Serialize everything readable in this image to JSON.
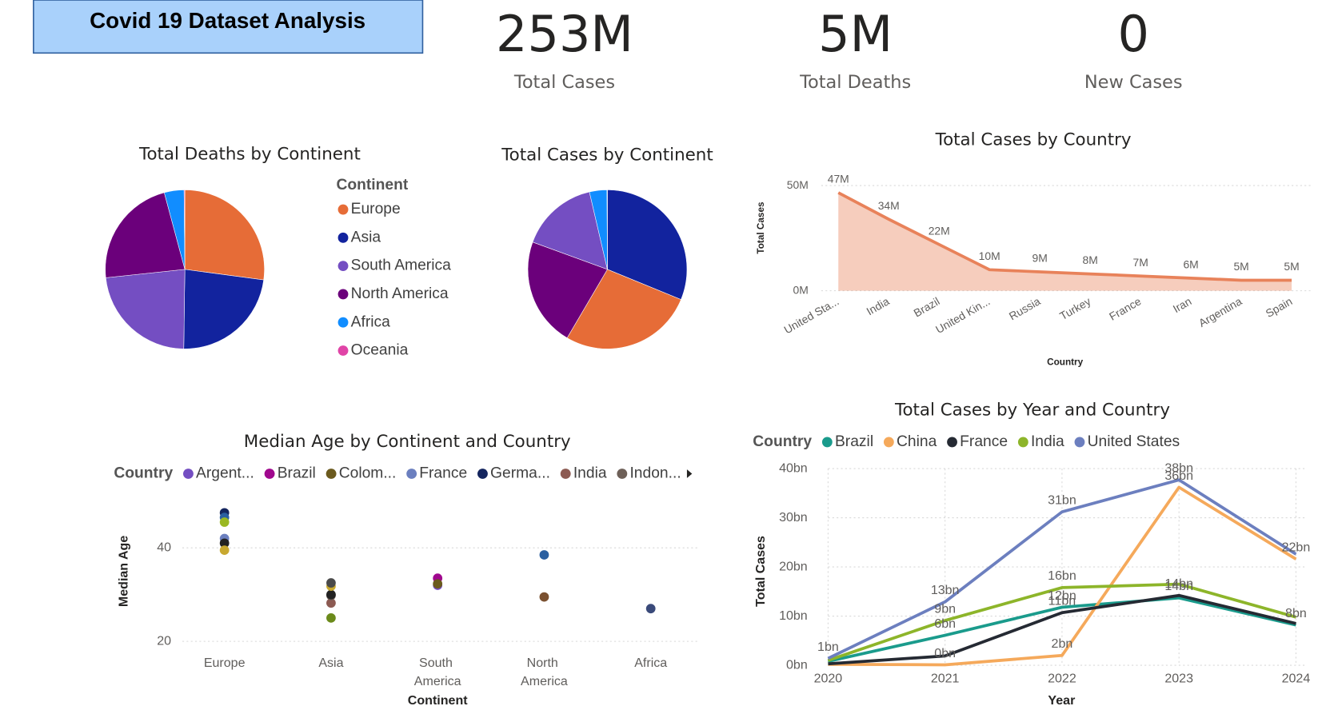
{
  "header": {
    "title": "Covid 19 Dataset Analysis"
  },
  "kpis": [
    {
      "value": "253M",
      "label": "Total Cases"
    },
    {
      "value": "5M",
      "label": "Total Deaths"
    },
    {
      "value": "0",
      "label": "New Cases"
    }
  ],
  "chart_data": [
    {
      "type": "pie",
      "title": "Total Deaths by Continent",
      "legend_title": "Continent",
      "categories": [
        "Europe",
        "Asia",
        "South America",
        "North America",
        "Africa",
        "Oceania"
      ],
      "values": [
        1350000,
        1150000,
        1150000,
        1120000,
        200000,
        8000
      ],
      "colors": [
        "#e66c37",
        "#12239e",
        "#744ec2",
        "#6b007b",
        "#118dff",
        "#e044a7"
      ]
    },
    {
      "type": "pie",
      "title": "Total Cases by Continent",
      "categories": [
        "Asia",
        "Europe",
        "North America",
        "South America",
        "Africa",
        "Oceania"
      ],
      "values": [
        79000000,
        69000000,
        56000000,
        40000000,
        9000000,
        200000
      ]
    },
    {
      "type": "area",
      "title": "Total Cases by Country",
      "x_label": "Country",
      "y_label": "Total Cases",
      "categories": [
        "United Sta...",
        "India",
        "Brazil",
        "United Kin...",
        "Russia",
        "Turkey",
        "France",
        "Iran",
        "Argentina",
        "Spain"
      ],
      "values": [
        46600000,
        34000000,
        22000000,
        10000000,
        9000000,
        8000000,
        7000000,
        6000000,
        5000000,
        5000000
      ],
      "value_labels": [
        "47M",
        "34M",
        "22M",
        "10M",
        "9M",
        "8M",
        "7M",
        "6M",
        "5M",
        "5M"
      ],
      "ylim": [
        0,
        50000000
      ],
      "yticks": [
        {
          "value": 0,
          "label": "0M"
        },
        {
          "value": 50000000,
          "label": "50M"
        }
      ],
      "color": "#e8825a",
      "grid": true
    },
    {
      "type": "scatter",
      "title": "Median Age by Continent and Country",
      "x_label": "Continent",
      "y_label": "Median Age",
      "legend_title": "Country",
      "categories": [
        "Europe",
        "Asia",
        "South America",
        "North America",
        "Africa"
      ],
      "ylim": [
        20,
        50
      ],
      "yticks": [
        20,
        40
      ],
      "grid": true,
      "series": [
        {
          "name": "Argent...",
          "color": "#744ec2",
          "values": [
            null,
            null,
            32,
            null,
            null
          ]
        },
        {
          "name": "Brazil",
          "color": "#a0088e",
          "values": [
            null,
            null,
            33.5,
            null,
            null
          ]
        },
        {
          "name": "Colom...",
          "color": "#6b5a1e",
          "values": [
            null,
            null,
            32.3,
            null,
            null
          ]
        },
        {
          "name": "France",
          "color": "#6b7fbf",
          "values": [
            42,
            null,
            null,
            null,
            null
          ]
        },
        {
          "name": "Germa...",
          "color": "#14255e",
          "values": [
            47.5,
            null,
            null,
            null,
            null
          ]
        },
        {
          "name": "India",
          "color": "#8c5a52",
          "values": [
            null,
            28.2,
            null,
            null,
            null
          ]
        },
        {
          "name": "Indon...",
          "color": "#6e6058",
          "values": [
            null,
            29.8,
            null,
            null,
            null
          ]
        },
        {
          "color": "#2a5fa0",
          "values": [
            46.5,
            null,
            null,
            38.5,
            null
          ]
        },
        {
          "color": "#9ab822",
          "values": [
            45.5,
            null,
            null,
            null,
            null
          ]
        },
        {
          "color": "#222222",
          "values": [
            41,
            30,
            null,
            null,
            null
          ]
        },
        {
          "color": "#c8a830",
          "values": [
            39.5,
            31.8,
            null,
            null,
            null
          ]
        },
        {
          "color": "#4a4a4a",
          "values": [
            null,
            32.5,
            null,
            null,
            null
          ]
        },
        {
          "color": "#6b8a1a",
          "values": [
            null,
            25,
            null,
            null,
            null
          ]
        },
        {
          "color": "#7a5030",
          "values": [
            null,
            null,
            null,
            29.5,
            null
          ]
        },
        {
          "color": "#3a4a7a",
          "values": [
            null,
            null,
            null,
            null,
            27
          ]
        }
      ]
    },
    {
      "type": "line",
      "title": "Total Cases by Year and Country",
      "x_label": "Year",
      "y_label": "Total Cases",
      "legend_title": "Country",
      "x": [
        2020,
        2021,
        2022,
        2023,
        2024
      ],
      "xlim": [
        2020,
        2024
      ],
      "xticks": [
        2020,
        2021,
        2022,
        2023,
        2024
      ],
      "ylim": [
        0,
        40000000000
      ],
      "yticks": [
        {
          "value": 0,
          "label": "0bn"
        },
        {
          "value": 10000000000,
          "label": "10bn"
        },
        {
          "value": 20000000000,
          "label": "20bn"
        },
        {
          "value": 30000000000,
          "label": "30bn"
        },
        {
          "value": 40000000000,
          "label": "40bn"
        }
      ],
      "grid": true,
      "series": [
        {
          "name": "Brazil",
          "color": "#1a9b8c",
          "values": [
            800000000,
            6100000000,
            11800000000,
            13700000000,
            8200000000
          ],
          "value_labels": [
            null,
            "6bn",
            "12bn",
            "14bn",
            "8bn"
          ]
        },
        {
          "name": "China",
          "color": "#f5a95b",
          "values": [
            200000000,
            100000000,
            2000000000,
            36200000000,
            21600000000
          ],
          "value_labels": [
            null,
            "0bn",
            "2bn",
            "36bn",
            "22bn"
          ]
        },
        {
          "name": "France",
          "color": "#252a33",
          "values": [
            300000000,
            1900000000,
            10700000000,
            14200000000,
            8500000000
          ],
          "value_labels": [
            null,
            null,
            "11bn",
            "14bn",
            null
          ]
        },
        {
          "name": "India",
          "color": "#8db52a",
          "values": [
            1000000000,
            9100000000,
            15800000000,
            16500000000,
            9800000000
          ],
          "value_labels": [
            null,
            "9bn",
            "16bn",
            null,
            null
          ]
        },
        {
          "name": "United States",
          "color": "#6c7fbf",
          "values": [
            1400000000,
            12900000000,
            31200000000,
            37700000000,
            22600000000
          ],
          "value_labels": [
            "1bn",
            "13bn",
            "31bn",
            "38bn",
            null
          ]
        }
      ]
    }
  ]
}
